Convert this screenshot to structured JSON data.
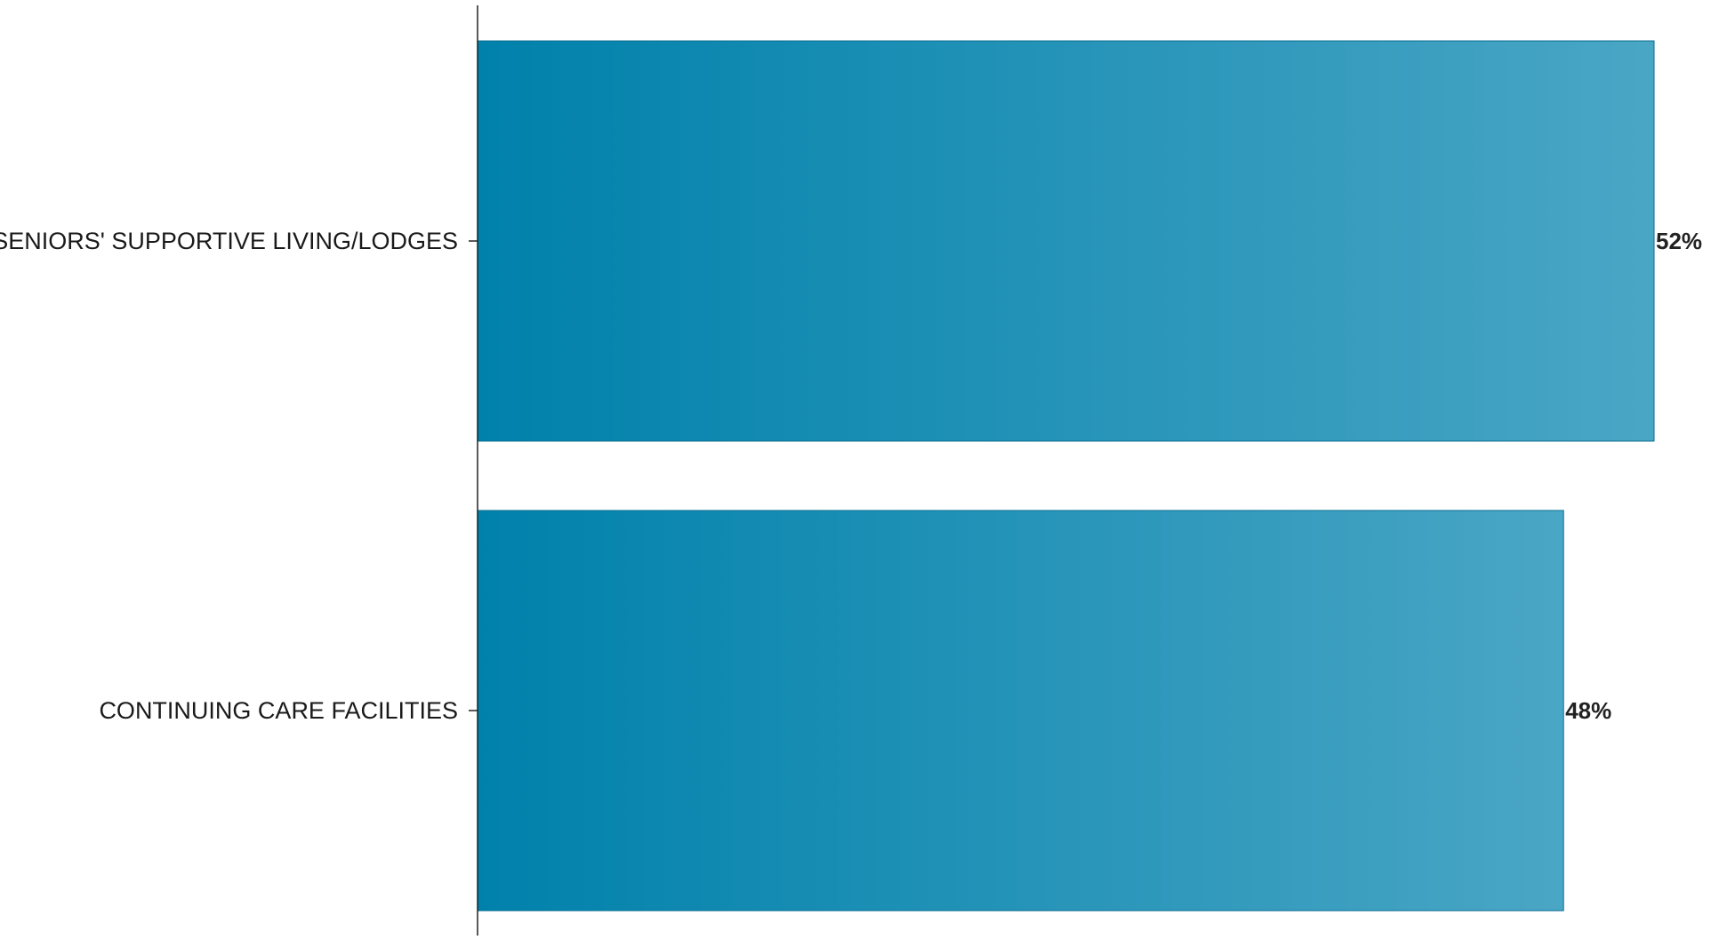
{
  "chart_data": {
    "type": "bar",
    "orientation": "horizontal",
    "categories": [
      "SENIORS' SUPPORTIVE LIVING/LODGES",
      "CONTINUING CARE FACILITIES"
    ],
    "values": [
      52,
      48
    ],
    "value_labels": [
      "52%",
      "48%"
    ],
    "unit": "%",
    "title": "",
    "xlabel": "",
    "ylabel": "",
    "xlim": [
      0,
      52
    ],
    "grid": false,
    "legend": "none",
    "colors": {
      "bar_gradient_start": "#0081AB",
      "bar_gradient_end": "#4AA6C5",
      "bar_stroke": "#0A6E92",
      "axis": "#222222"
    }
  }
}
